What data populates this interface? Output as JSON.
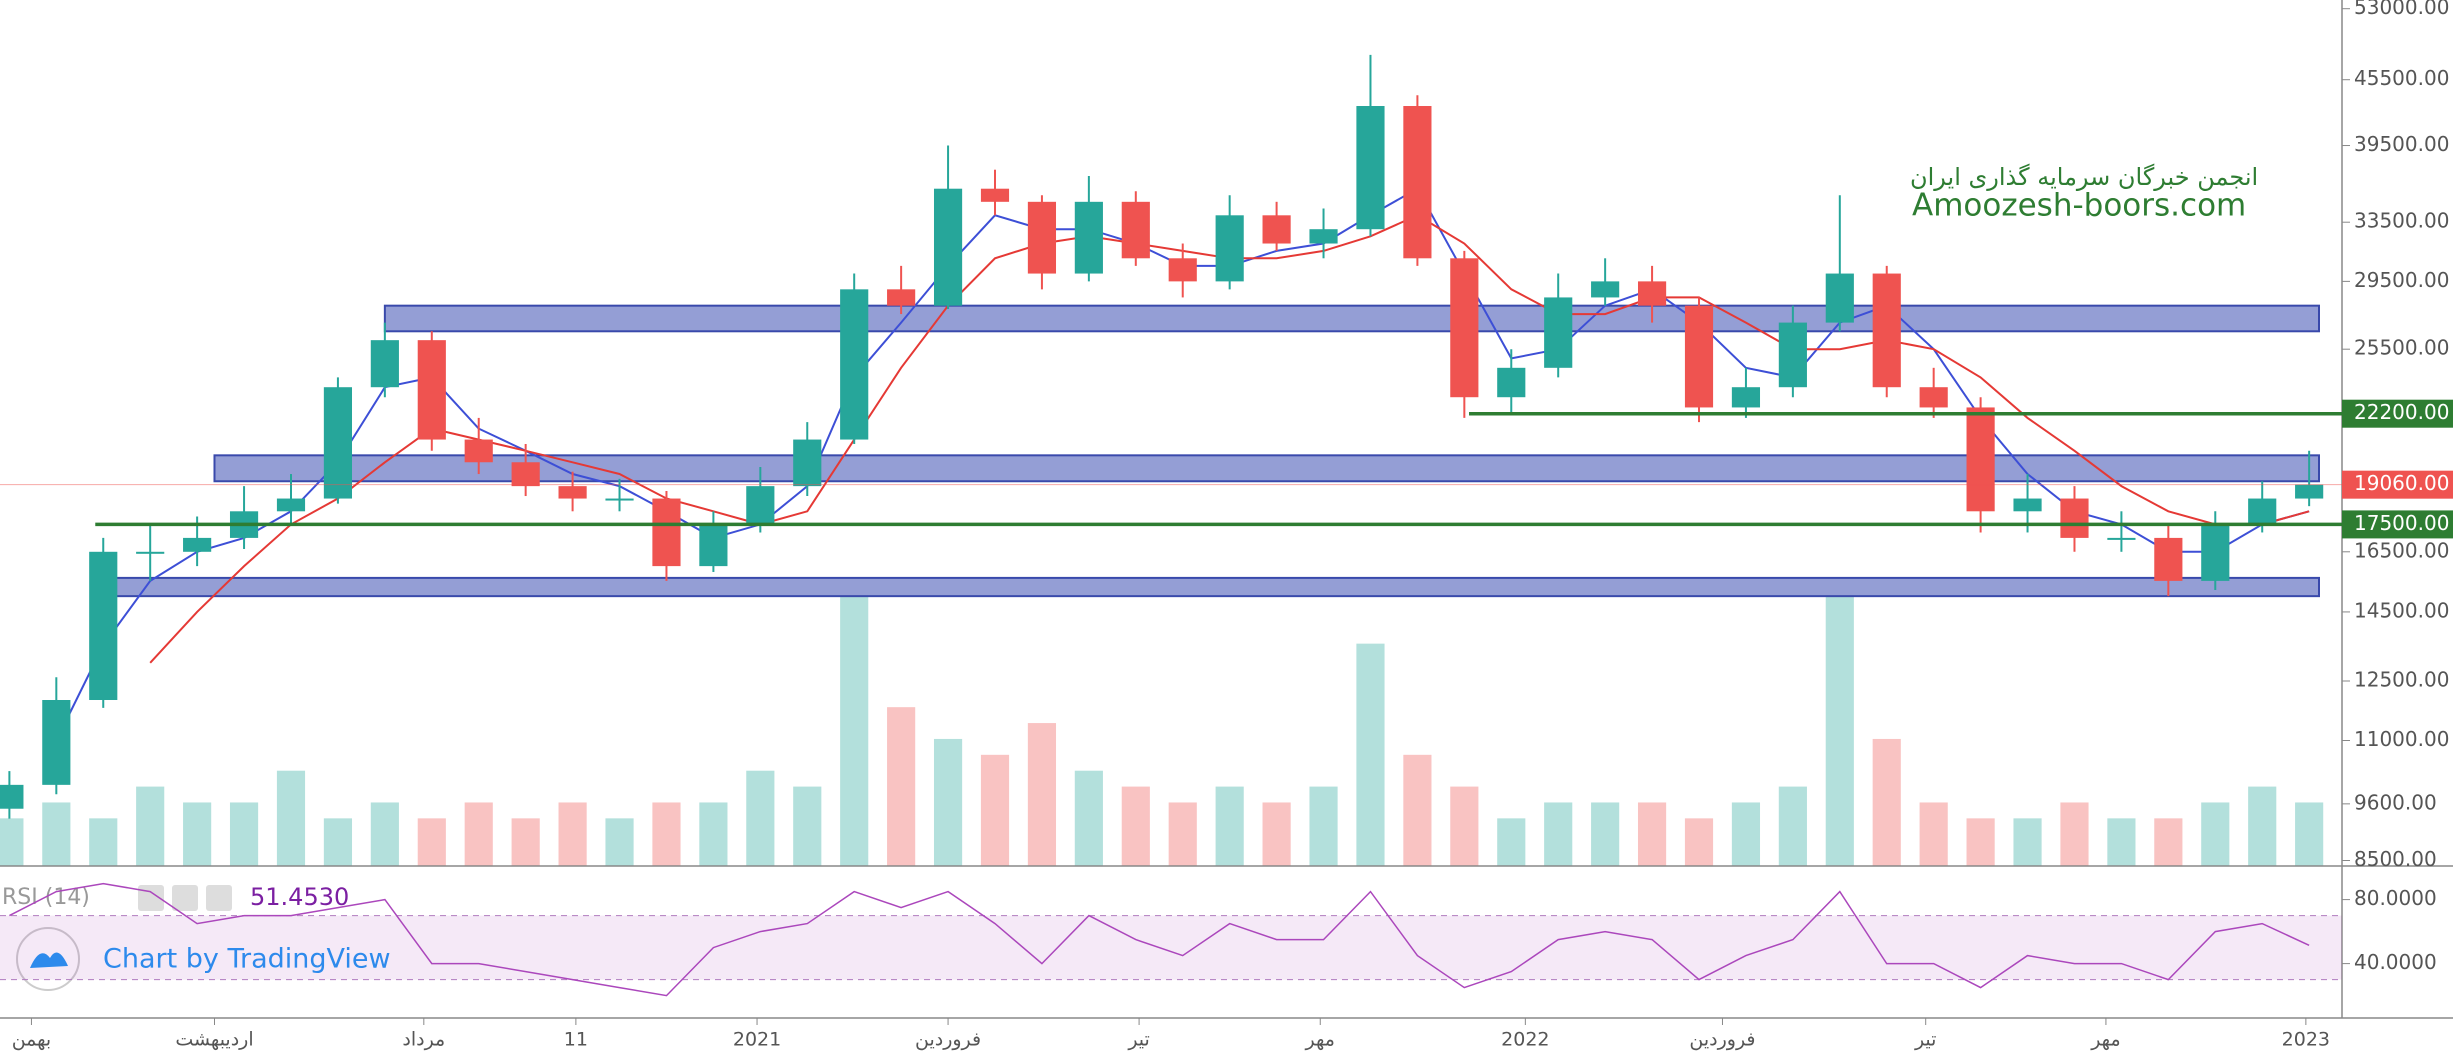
{
  "chart_data": {
    "type": "candlestick",
    "watermark_title": "انجمن خبرگان سرمایه گذاری ایران",
    "watermark_url": "Amoozesh-boors.com",
    "branding": "Chart by TradingView",
    "log_scale": true,
    "grid": false,
    "up_color": "#26a69a",
    "down_color": "#ef5350",
    "open": [
      9500,
      10000,
      12000,
      16500,
      16500,
      17000,
      18000,
      18500,
      23500,
      26000,
      21000,
      20000,
      19000,
      18500,
      18500,
      16000,
      17500,
      19000,
      21000,
      29000,
      28000,
      36000,
      35000,
      30000,
      35000,
      31000,
      29500,
      34000,
      32000,
      33000,
      43000,
      31000,
      23000,
      24500,
      28500,
      29500,
      28000,
      22500,
      23500,
      27000,
      30000,
      23500,
      22500,
      18000,
      18500,
      17000,
      17000,
      15500,
      17500,
      18500
    ],
    "high": [
      10300,
      12600,
      17000,
      17500,
      17800,
      19000,
      19500,
      24000,
      27000,
      26500,
      22000,
      20800,
      19600,
      19300,
      18800,
      18000,
      19800,
      21800,
      30000,
      30500,
      39500,
      37500,
      35500,
      37000,
      35800,
      32000,
      35500,
      35000,
      34500,
      48000,
      44000,
      31500,
      25500,
      30000,
      31000,
      30500,
      28500,
      24500,
      28000,
      35500,
      30500,
      24500,
      23000,
      19500,
      19000,
      18000,
      17500,
      18000,
      19200,
      20500
    ],
    "low": [
      9300,
      9800,
      11800,
      15500,
      16000,
      16600,
      17500,
      18300,
      23000,
      20500,
      19500,
      18600,
      18000,
      18000,
      15500,
      15800,
      17200,
      18600,
      20800,
      27500,
      27800,
      34000,
      29000,
      29500,
      30500,
      28500,
      29000,
      31500,
      31000,
      32500,
      30500,
      22000,
      22200,
      24000,
      28000,
      27000,
      21800,
      22000,
      23000,
      26500,
      23000,
      22000,
      17200,
      17200,
      16500,
      16500,
      15000,
      15200,
      17200,
      18200
    ],
    "close": [
      10000,
      12000,
      16500,
      16500,
      17000,
      18000,
      18500,
      23500,
      26000,
      21000,
      20000,
      19000,
      18500,
      18500,
      16000,
      17500,
      19000,
      21000,
      29000,
      28000,
      36000,
      35000,
      30000,
      35000,
      31000,
      29500,
      34000,
      32000,
      33000,
      43000,
      31000,
      23000,
      24500,
      28500,
      29500,
      28000,
      22500,
      23500,
      27000,
      30000,
      23500,
      22500,
      18000,
      18500,
      17000,
      17000,
      15500,
      17500,
      18500,
      19060
    ],
    "moving_averages": [
      {
        "color": "#3d4fd6",
        "values": [
          null,
          11000,
          13500,
          15500,
          16500,
          17000,
          18000,
          20000,
          23500,
          24000,
          21500,
          20500,
          19500,
          19000,
          18000,
          17000,
          17500,
          19000,
          24000,
          27000,
          30500,
          34000,
          33000,
          33000,
          32000,
          30500,
          30500,
          31500,
          32000,
          34000,
          36000,
          30000,
          25000,
          25500,
          28000,
          29000,
          27000,
          24500,
          24000,
          27000,
          28000,
          25500,
          22000,
          19500,
          18000,
          17500,
          16500,
          16500,
          17500,
          18000
        ]
      },
      {
        "color": "#e53935",
        "values": [
          null,
          null,
          null,
          13000,
          14500,
          16000,
          17500,
          18500,
          20000,
          21500,
          21000,
          20500,
          20000,
          19500,
          18500,
          18000,
          17500,
          18000,
          21000,
          24500,
          28000,
          31000,
          32000,
          32500,
          32000,
          31500,
          31000,
          31000,
          31500,
          32500,
          34000,
          32000,
          29000,
          27500,
          27500,
          28500,
          28500,
          27000,
          25500,
          25500,
          26000,
          25500,
          24000,
          22000,
          20500,
          19000,
          18000,
          17500,
          17500,
          18000
        ]
      }
    ],
    "volume": [
      3,
      4,
      3,
      5,
      4,
      4,
      6,
      3,
      4,
      3,
      4,
      3,
      4,
      3,
      4,
      4,
      6,
      5,
      17,
      10,
      8,
      7,
      9,
      6,
      5,
      4,
      5,
      4,
      5,
      14,
      7,
      5,
      3,
      4,
      4,
      4,
      3,
      4,
      5,
      17,
      8,
      4,
      3,
      3,
      4,
      3,
      3,
      4,
      5,
      4
    ],
    "ylim": [
      8400,
      54000
    ],
    "yticks": [
      {
        "value": 53000,
        "label": "53000.00"
      },
      {
        "value": 45500,
        "label": "45500.00"
      },
      {
        "value": 39500,
        "label": "39500.00"
      },
      {
        "value": 33500,
        "label": "33500.00"
      },
      {
        "value": 29500,
        "label": "29500.00"
      },
      {
        "value": 25500,
        "label": "25500.00"
      },
      {
        "value": 16500,
        "label": "16500.00"
      },
      {
        "value": 14500,
        "label": "14500.00"
      },
      {
        "value": 12500,
        "label": "12500.00"
      },
      {
        "value": 11000,
        "label": "11000.00"
      },
      {
        "value": 9600,
        "label": "9600.00"
      },
      {
        "value": 8500,
        "label": "8500.00"
      }
    ],
    "xlim": [
      -0.2,
      49.7
    ],
    "xticks": [
      {
        "value": 0.47,
        "label": "بهمن"
      },
      {
        "value": 4.37,
        "label": "اردیبهشت"
      },
      {
        "value": 8.83,
        "label": "مرداد"
      },
      {
        "value": 12.07,
        "label": "11"
      },
      {
        "value": 15.93,
        "label": "2021"
      },
      {
        "value": 20,
        "label": "فروردین"
      },
      {
        "value": 24.07,
        "label": "تیر"
      },
      {
        "value": 27.93,
        "label": "مهر"
      },
      {
        "value": 32.3,
        "label": "2022"
      },
      {
        "value": 36.5,
        "label": "فروردین"
      },
      {
        "value": 40.83,
        "label": "تیر"
      },
      {
        "value": 44.67,
        "label": "مهر"
      },
      {
        "value": 48.93,
        "label": "2023"
      }
    ],
    "zones": [
      {
        "low": 26500,
        "high": 28000,
        "start": 8,
        "color": "#7986cb"
      },
      {
        "low": 19200,
        "high": 20300,
        "start": 4.37,
        "color": "#7986cb"
      },
      {
        "low": 15000,
        "high": 15600,
        "start": 1.83,
        "color": "#7986cb"
      }
    ],
    "levels": [
      {
        "value": 22200,
        "label": "22200.00",
        "start": 31.1,
        "color": "#2e7d32"
      },
      {
        "value": 19060,
        "label": "19060.00",
        "start": -0.2,
        "color": "#ef5350"
      },
      {
        "value": 17500,
        "label": "17500.00",
        "start": 1.83,
        "color": "#2e7d32"
      }
    ],
    "rsi": {
      "title": "RSI (14)",
      "last_label": "51.4530",
      "color": "#ab47bc",
      "values": [
        70,
        85,
        90,
        85,
        65,
        70,
        70,
        75,
        80,
        40,
        40,
        35,
        30,
        25,
        20,
        50,
        60,
        65,
        85,
        75,
        85,
        65,
        40,
        70,
        55,
        45,
        65,
        55,
        55,
        85,
        45,
        25,
        35,
        55,
        60,
        55,
        30,
        45,
        55,
        85,
        40,
        40,
        25,
        45,
        40,
        40,
        30,
        60,
        65,
        51.453
      ],
      "ylim": [
        6,
        101
      ],
      "yticks": [
        {
          "value": 80,
          "label": "80.0000"
        },
        {
          "value": 40,
          "label": "40.0000"
        }
      ],
      "band": [
        30,
        70
      ]
    }
  }
}
